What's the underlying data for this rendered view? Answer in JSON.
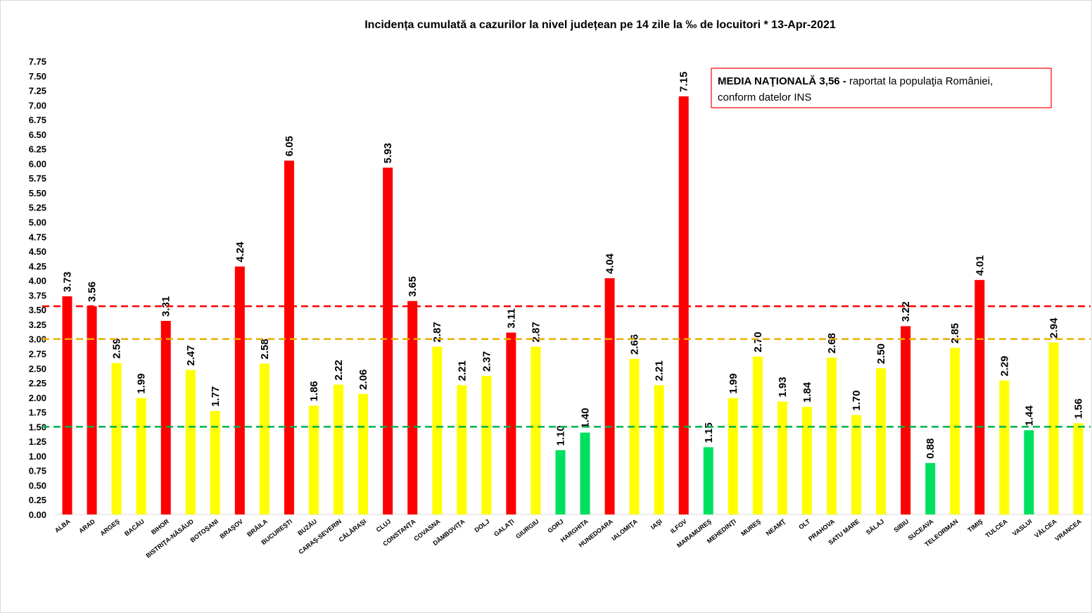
{
  "chart_data": {
    "type": "bar",
    "title": "Incidența cumulată a cazurilor la nivel județean pe 14 zile la ‰ de locuitori *   13-Apr-2021",
    "categories": [
      "ALBA",
      "ARAD",
      "ARGEŞ",
      "BACĂU",
      "BIHOR",
      "BISTRIŢA-NĂSĂUD",
      "BOTOŞANI",
      "BRAŞOV",
      "BRĂILA",
      "BUCUREŞTI",
      "BUZĂU",
      "CARAŞ-SEVERIN",
      "CĂLĂRAŞI",
      "CLUJ",
      "CONSTANŢA",
      "COVASNA",
      "DÂMBOVIŢA",
      "DOLJ",
      "GALAŢI",
      "GIURGIU",
      "GORJ",
      "HARGHITA",
      "HUNEDOARA",
      "IALOMIŢA",
      "IAŞI",
      "ILFOV",
      "MARAMUREŞ",
      "MEHEDINŢI",
      "MUREŞ",
      "NEAMŢ",
      "OLT",
      "PRAHOVA",
      "SATU MARE",
      "SĂLAJ",
      "SIBIU",
      "SUCEAVA",
      "TELEORMAN",
      "TIMIŞ",
      "TULCEA",
      "VASLUI",
      "VÂLCEA",
      "VRANCEA"
    ],
    "values": [
      3.73,
      3.56,
      2.59,
      1.99,
      3.31,
      2.47,
      1.77,
      4.24,
      2.58,
      6.05,
      1.86,
      2.22,
      2.06,
      5.93,
      3.65,
      2.87,
      2.21,
      2.37,
      3.11,
      2.87,
      1.1,
      1.4,
      4.04,
      2.66,
      2.21,
      7.15,
      1.15,
      1.99,
      2.7,
      1.93,
      1.84,
      2.68,
      1.7,
      2.5,
      3.22,
      0.88,
      2.85,
      4.01,
      2.29,
      1.44,
      2.94,
      1.56
    ],
    "value_labels": [
      "3.73",
      "3.56",
      "2.59",
      "1.99",
      "3.31",
      "2.47",
      "1.77",
      "4.24",
      "2.58",
      "6.05",
      "1.86",
      "2.22",
      "2.06",
      "5.93",
      "3.65",
      "2.87",
      "2.21",
      "2.37",
      "3.11",
      "2.87",
      "1.10",
      "1.40",
      "4.04",
      "2.66",
      "2.21",
      "7.15",
      "1.15",
      "1.99",
      "2.70",
      "1.93",
      "1.84",
      "2.68",
      "1.70",
      "2.50",
      "3.22",
      "0.88",
      "2.85",
      "4.01",
      "2.29",
      "1.44",
      "2.94",
      "1.56"
    ],
    "colors": [
      "#ff0000",
      "#ff0000",
      "#ffff00",
      "#ffff00",
      "#ff0000",
      "#ffff00",
      "#ffff00",
      "#ff0000",
      "#ffff00",
      "#ff0000",
      "#ffff00",
      "#ffff00",
      "#ffff00",
      "#ff0000",
      "#ff0000",
      "#ffff00",
      "#ffff00",
      "#ffff00",
      "#ff0000",
      "#ffff00",
      "#00e060",
      "#00e060",
      "#ff0000",
      "#ffff00",
      "#ffff00",
      "#ff0000",
      "#00e060",
      "#ffff00",
      "#ffff00",
      "#ffff00",
      "#ffff00",
      "#ffff00",
      "#ffff00",
      "#ffff00",
      "#ff0000",
      "#00e060",
      "#ffff00",
      "#ff0000",
      "#ffff00",
      "#00e060",
      "#ffff00",
      "#ffff00"
    ],
    "ylim": [
      0,
      7.75
    ],
    "yticks": [
      {
        "value": 0,
        "label": "0.00"
      },
      {
        "value": 0.25,
        "label": "0.25"
      },
      {
        "value": 0.5,
        "label": "0.50"
      },
      {
        "value": 0.75,
        "label": "0.75"
      },
      {
        "value": 1,
        "label": "1.00"
      },
      {
        "value": 1.25,
        "label": "1.25"
      },
      {
        "value": 1.5,
        "label": "1.50"
      },
      {
        "value": 1.75,
        "label": "1.75"
      },
      {
        "value": 2,
        "label": "2.00"
      },
      {
        "value": 2.25,
        "label": "2.25"
      },
      {
        "value": 2.5,
        "label": "2.50"
      },
      {
        "value": 2.75,
        "label": "2.75"
      },
      {
        "value": 3,
        "label": "3.00"
      },
      {
        "value": 3.25,
        "label": "3.25"
      },
      {
        "value": 3.5,
        "label": "3.50"
      },
      {
        "value": 3.75,
        "label": "3.75"
      },
      {
        "value": 4,
        "label": "4.00"
      },
      {
        "value": 4.25,
        "label": "4.25"
      },
      {
        "value": 4.5,
        "label": "4.50"
      },
      {
        "value": 4.75,
        "label": "4.75"
      },
      {
        "value": 5,
        "label": "5.00"
      },
      {
        "value": 5.25,
        "label": "5.25"
      },
      {
        "value": 5.5,
        "label": "5.50"
      },
      {
        "value": 5.75,
        "label": "5.75"
      },
      {
        "value": 6,
        "label": "6.00"
      },
      {
        "value": 6.25,
        "label": "6.25"
      },
      {
        "value": 6.5,
        "label": "6.50"
      },
      {
        "value": 6.75,
        "label": "6.75"
      },
      {
        "value": 7,
        "label": "7.00"
      },
      {
        "value": 7.25,
        "label": "7.25"
      },
      {
        "value": 7.5,
        "label": "7.50"
      },
      {
        "value": 7.75,
        "label": "7.75"
      }
    ],
    "reference_lines": [
      {
        "value": 3.56,
        "color": "#ff0000"
      },
      {
        "value": 3,
        "color": "#e6b000"
      },
      {
        "value": 1.5,
        "color": "#00b050"
      }
    ],
    "annotation": {
      "bold": "MEDIA NAŢIONALĂ  3,56 -",
      "text1": "raportat la populaţia României,",
      "text2": "conform datelor INS"
    }
  }
}
